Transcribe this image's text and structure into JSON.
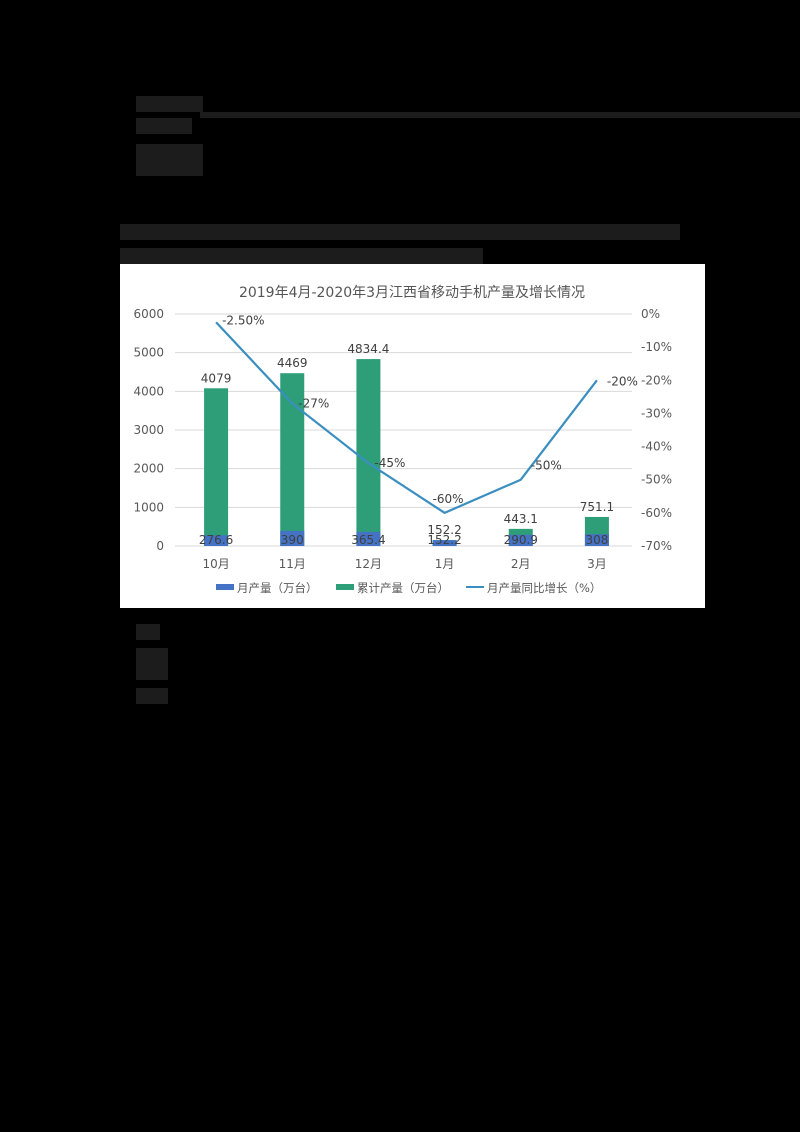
{
  "page": {
    "background": "#000000",
    "redacted_blocks": "text regions obscured"
  },
  "chart_data": {
    "type": "bar+line",
    "title": "2019年4月-2020年3月江西省移动手机产量及增长情况",
    "categories": [
      "10月",
      "11月",
      "12月",
      "1月",
      "2月",
      "3月"
    ],
    "series": [
      {
        "name": "月产量（万台）",
        "type": "bar",
        "color": "#4472c4",
        "axis": "left",
        "values": [
          276.6,
          390,
          365.4,
          152.2,
          290.9,
          308
        ]
      },
      {
        "name": "累计产量（万台）",
        "type": "bar",
        "color": "#2e9e78",
        "axis": "left",
        "values": [
          4079,
          4469,
          4834.4,
          152.2,
          443.1,
          751.1
        ]
      },
      {
        "name": "月产量同比增长（%）",
        "type": "line",
        "color": "#3a8fc0",
        "axis": "right",
        "values": [
          -2.5,
          -27,
          -45,
          -60,
          -50,
          -20
        ]
      }
    ],
    "line_labels": [
      "-2.50%",
      "-27%",
      "-45%",
      "-60%",
      "-50%",
      "-20%"
    ],
    "left_axis": {
      "ticks": [
        "0",
        "1000",
        "2000",
        "3000",
        "4000",
        "5000",
        "6000"
      ],
      "ylim": [
        0,
        6000
      ]
    },
    "right_axis": {
      "ticks": [
        "0%",
        "-10%",
        "-20%",
        "-30%",
        "-40%",
        "-50%",
        "-60%",
        "-70%"
      ],
      "ylim": [
        -70,
        0
      ]
    },
    "xlabel": "",
    "ylabel": "",
    "grid": true,
    "legend_position": "bottom"
  }
}
